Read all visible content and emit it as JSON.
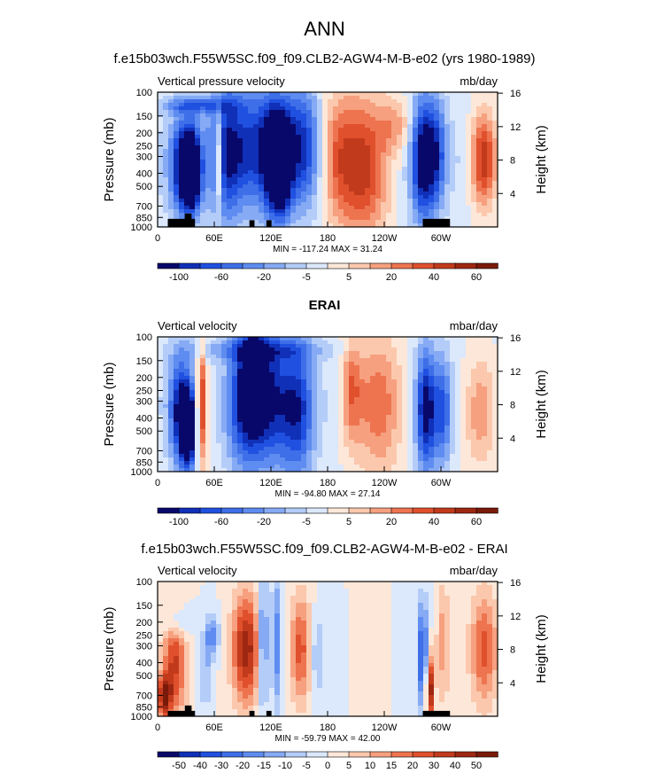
{
  "page": {
    "title": "ANN"
  },
  "colors": {
    "palette": [
      "#08086b",
      "#1030b8",
      "#2050e0",
      "#3e6ee8",
      "#5e8cf0",
      "#86aaf4",
      "#b4ccf8",
      "#dce8fb",
      "#fde7d8",
      "#fbc8ad",
      "#f6a07f",
      "#ee7450",
      "#e0502d",
      "#c23a1c",
      "#9e2712",
      "#7a1a0a"
    ],
    "topography": "#000000"
  },
  "chart_data": [
    {
      "type": "heatmap",
      "title": "f.e15b03wch.F55W5SC.f09_f09.CLB2-AGW4-M-B-e02 (yrs 1980-1989)",
      "left_label": "Vertical pressure velocity",
      "units": "mb/day",
      "xlabel": "",
      "ylabel": "Pressure (mb)",
      "y2label": "Height (km)",
      "xticks": [
        "0",
        "60E",
        "120E",
        "180",
        "120W",
        "60W"
      ],
      "yticks": [
        "100",
        "150",
        "200",
        "250",
        "300",
        "400",
        "500",
        "700",
        "850",
        "1000"
      ],
      "y2ticks": [
        "16",
        "12",
        "8",
        "4"
      ],
      "ylim": [
        1000,
        100
      ],
      "min_max": "MIN = -117.24   MAX =  31.24",
      "colorbar_labels": [
        "-100",
        "-60",
        "-20",
        "-5",
        "5",
        "20",
        "40",
        "60"
      ]
    },
    {
      "type": "heatmap",
      "title": "ERAI",
      "left_label": "Vertical velocity",
      "units": "mbar/day",
      "xlabel": "",
      "ylabel": "Pressure (mb)",
      "y2label": "Height (km)",
      "xticks": [
        "0",
        "60E",
        "120E",
        "180",
        "120W",
        "60W"
      ],
      "yticks": [
        "100",
        "150",
        "200",
        "250",
        "300",
        "400",
        "500",
        "700",
        "850",
        "1000"
      ],
      "y2ticks": [
        "16",
        "12",
        "8",
        "4"
      ],
      "ylim": [
        1000,
        100
      ],
      "min_max": "MIN = -94.80   MAX =  27.14",
      "colorbar_labels": [
        "-100",
        "-60",
        "-20",
        "-5",
        "5",
        "20",
        "40",
        "60"
      ]
    },
    {
      "type": "heatmap",
      "title": "f.e15b03wch.F55W5SC.f09_f09.CLB2-AGW4-M-B-e02 - ERAI",
      "left_label": "Vertical velocity",
      "units": "mbar/day",
      "xlabel": "",
      "ylabel": "Pressure (mb)",
      "y2label": "Height (km)",
      "xticks": [
        "0",
        "60E",
        "120E",
        "180",
        "120W",
        "60W"
      ],
      "yticks": [
        "100",
        "150",
        "200",
        "250",
        "300",
        "400",
        "500",
        "700",
        "850",
        "1000"
      ],
      "y2ticks": [
        "16",
        "12",
        "8",
        "4"
      ],
      "ylim": [
        1000,
        100
      ],
      "min_max": "MIN = -59.79   MAX =  42.00",
      "colorbar_labels": [
        "-50",
        "-40",
        "-30",
        "-20",
        "-15",
        "-10",
        "-5",
        "0",
        "5",
        "10",
        "15",
        "20",
        "30",
        "40",
        "50"
      ]
    }
  ]
}
